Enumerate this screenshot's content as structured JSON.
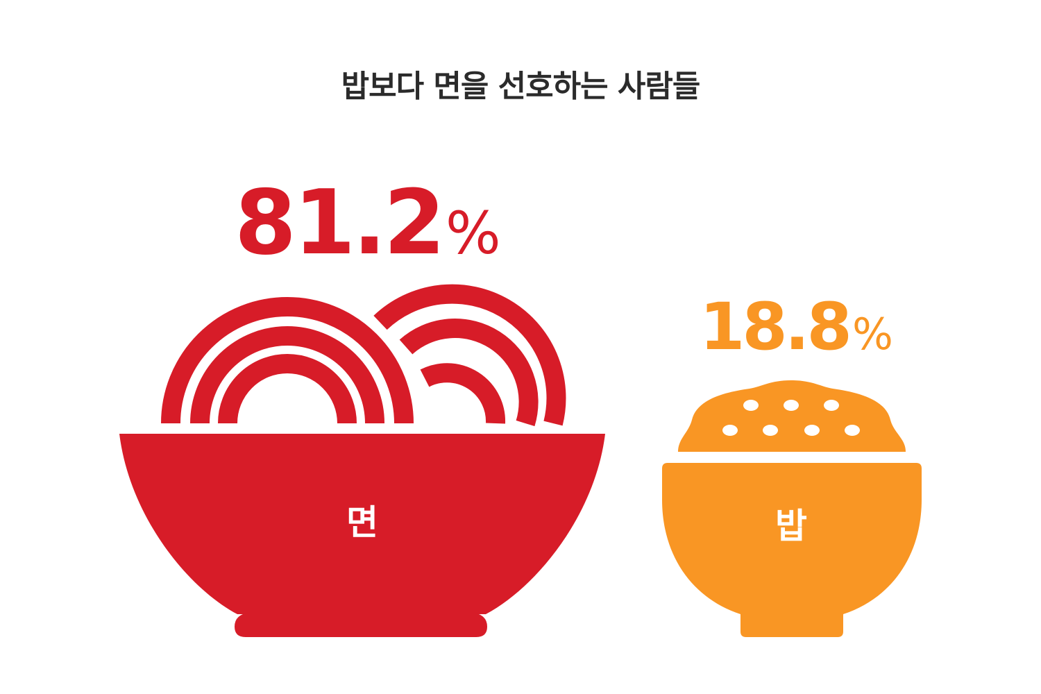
{
  "title": "밥보다 면을 선호하는 사람들",
  "colors": {
    "noodle": "#d71c28",
    "rice": "#f99624",
    "title": "#2b2b2b",
    "background": "#ffffff"
  },
  "chart_data": {
    "type": "pictograph",
    "title": "밥보다 면을 선호하는 사람들",
    "unit": "%",
    "categories": [
      "면",
      "밥"
    ],
    "values": [
      81.2,
      18.8
    ],
    "items": [
      {
        "label": "면",
        "value": 81.2,
        "value_text": "81.2",
        "unit": "%",
        "icon": "noodle-bowl-icon",
        "color": "#d71c28"
      },
      {
        "label": "밥",
        "value": 18.8,
        "value_text": "18.8",
        "unit": "%",
        "icon": "rice-bowl-icon",
        "color": "#f99624"
      }
    ]
  }
}
